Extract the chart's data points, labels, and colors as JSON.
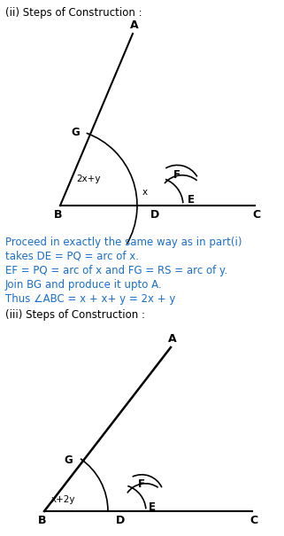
{
  "title_ii": "(ii) Steps of Construction :",
  "title_iii": "(iii) Steps of Construction :",
  "text_lines": [
    "Proceed in exactly the same way as in part(i)",
    "takes DE = PQ = arc of x.",
    "EF = PQ = arc of x and FG = RS = arc of y.",
    "Join BG and produce it upto A.",
    "Thus ∠ABC = x + x+ y = 2x + y"
  ],
  "bg_color": "#ffffff",
  "black": "#000000",
  "blue": "#1a6fcc",
  "fig_width": 3.21,
  "fig_height": 6.05
}
